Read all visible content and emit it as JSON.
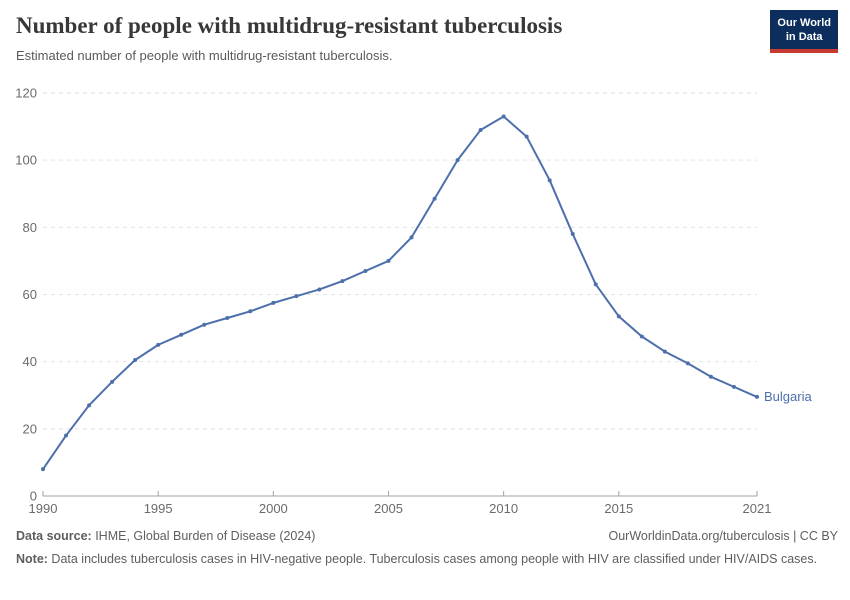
{
  "header": {
    "title": "Number of people with multidrug-resistant tuberculosis",
    "subtitle": "Estimated number of people with multidrug-resistant tuberculosis.",
    "logo": {
      "line1": "Our World",
      "line2": "in Data"
    }
  },
  "colors": {
    "line": "#4d6fab",
    "logo_background": "#0d2e5c",
    "logo_red_bar": "#c73a31",
    "gridline": "#e2e2e2",
    "axis": "#a3a3a3"
  },
  "chart_data": {
    "type": "line",
    "title": "Number of people with multidrug-resistant tuberculosis",
    "xlabel": "",
    "ylabel": "",
    "xlim": [
      1990,
      2021
    ],
    "ylim": [
      0,
      120
    ],
    "x_ticks": [
      1990,
      1995,
      2000,
      2005,
      2010,
      2015,
      2021
    ],
    "y_ticks": [
      0,
      20,
      40,
      60,
      80,
      100,
      120
    ],
    "grid": "horizontal-dashed",
    "legend_position": "end-of-line-label",
    "series": [
      {
        "name": "Bulgaria",
        "color": "#4d6fab",
        "x": [
          1990,
          1991,
          1992,
          1993,
          1994,
          1995,
          1996,
          1997,
          1998,
          1999,
          2000,
          2001,
          2002,
          2003,
          2004,
          2005,
          2006,
          2007,
          2008,
          2009,
          2010,
          2011,
          2012,
          2013,
          2014,
          2015,
          2016,
          2017,
          2018,
          2019,
          2020,
          2021
        ],
        "values": [
          8,
          18,
          27,
          34,
          40.5,
          45,
          48,
          51,
          53,
          55,
          57.5,
          59.5,
          61.5,
          64,
          67,
          70,
          77,
          88.5,
          100,
          109,
          113,
          107,
          94,
          78,
          63,
          53.5,
          47.5,
          43,
          39.5,
          35.5,
          32.5,
          29.5
        ]
      }
    ]
  },
  "footer": {
    "datasource_label": "Data source:",
    "datasource_text": " IHME, Global Burden of Disease (2024)",
    "link_text": "OurWorldinData.org/tuberculosis | CC BY",
    "note_label": "Note:",
    "note_text": " Data includes tuberculosis cases in HIV-negative people. Tuberculosis cases among people with HIV are classified under HIV/AIDS cases."
  }
}
